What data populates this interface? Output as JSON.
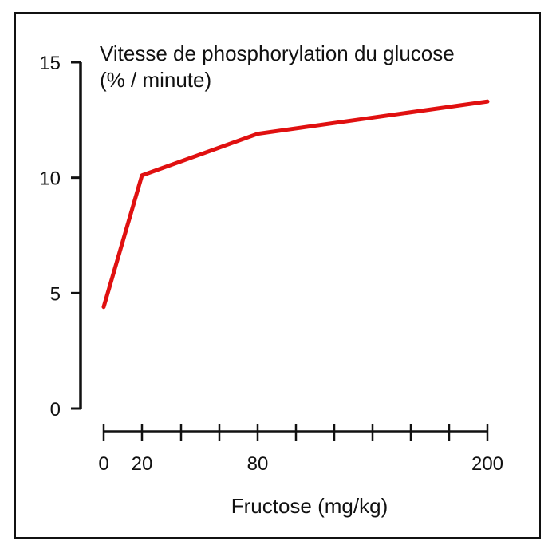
{
  "chart_data": {
    "type": "line",
    "title": "Vitesse de phosphorylation du glucose",
    "subtitle": "(% / minute)",
    "xlabel": "Fructose (mg/kg)",
    "ylabel": "",
    "y_ticks": [
      0,
      5,
      10,
      15
    ],
    "x_tick_labels": [
      "0",
      "20",
      "80",
      "200"
    ],
    "ylim": [
      0,
      15
    ],
    "grid": false,
    "legend": "none",
    "line_color": "#e01010",
    "series": [
      {
        "points": [
          {
            "x": "0",
            "y": 4.4
          },
          {
            "x": "20",
            "y": 10.1
          },
          {
            "x": "80",
            "y": 11.9
          },
          {
            "x": "200",
            "y": 13.3
          }
        ]
      }
    ]
  }
}
